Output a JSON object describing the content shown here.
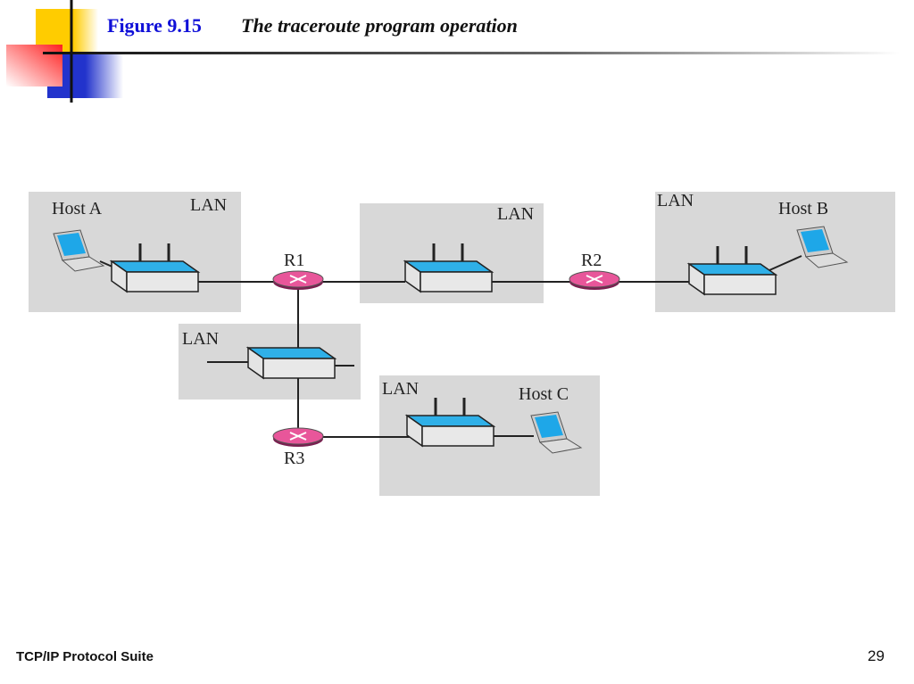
{
  "slide": {
    "figure_number": "Figure 9.15",
    "title": "The traceroute program operation",
    "footer": "TCP/IP Protocol Suite",
    "page_number": "29"
  },
  "diagram": {
    "lan_label": "LAN",
    "hosts": {
      "a": "Host A",
      "b": "Host B",
      "c": "Host C"
    },
    "routers": {
      "r1": "R1",
      "r2": "R2",
      "r3": "R3"
    },
    "colors": {
      "lan_bg": "#d8d8d8",
      "switch_top": "#2fb0e8",
      "router": "#e8569a",
      "title_blue": "#1010d8"
    }
  }
}
